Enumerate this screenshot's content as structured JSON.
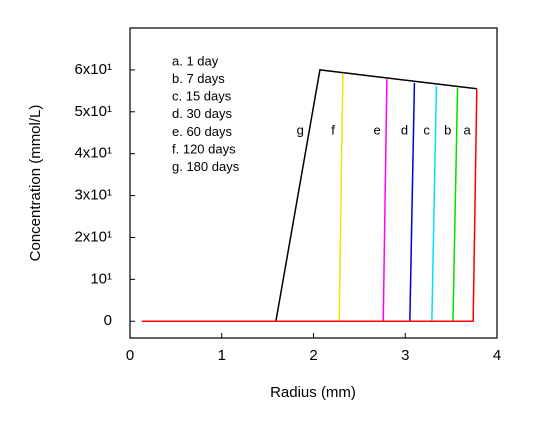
{
  "chart_data": {
    "type": "line",
    "x_label": "Radius (mm)",
    "y_label": "Concentration (mmol/L)",
    "xlim": [
      0,
      4
    ],
    "xticks": [
      0,
      1,
      2,
      3,
      4
    ],
    "ylim": [
      -4,
      70
    ],
    "yticks": [
      0,
      {
        "value": 10,
        "label": "10¹"
      },
      {
        "value": 20,
        "label": "2x10¹"
      },
      {
        "value": 30,
        "label": "3x10¹"
      },
      {
        "value": 40,
        "label": "4x10¹"
      },
      {
        "value": 50,
        "label": "5x10¹"
      },
      {
        "value": 60,
        "label": "6x10¹"
      }
    ],
    "series": [
      {
        "name": "g. 180 days",
        "curve_label": "g",
        "color": "#000000",
        "x": [
          0.13,
          1.59,
          2.07,
          3.78
        ],
        "values": [
          0,
          0,
          60,
          55.5
        ]
      },
      {
        "name": "f. 120 days",
        "curve_label": "f",
        "color": "#e8e800",
        "x": [
          0.13,
          2.28,
          2.32
        ],
        "values": [
          0,
          0,
          59.2
        ]
      },
      {
        "name": "e. 60 days",
        "curve_label": "e",
        "color": "#ff00ff",
        "x": [
          0.13,
          2.76,
          2.8
        ],
        "values": [
          0,
          0,
          57.8
        ]
      },
      {
        "name": "d. 30 days",
        "curve_label": "d",
        "color": "#0000cc",
        "x": [
          0.13,
          3.05,
          3.1
        ],
        "values": [
          0,
          0,
          56.9
        ]
      },
      {
        "name": "c. 15 days",
        "curve_label": "c",
        "color": "#00e0ff",
        "x": [
          0.13,
          3.29,
          3.34
        ],
        "values": [
          0,
          0,
          56.2
        ]
      },
      {
        "name": "b. 7 days",
        "curve_label": "b",
        "color": "#00dd00",
        "x": [
          0.13,
          3.52,
          3.57
        ],
        "values": [
          0,
          0,
          55.7
        ]
      },
      {
        "name": "a. 1 day",
        "curve_label": "a",
        "color": "#ff0000",
        "x": [
          0.13,
          3.74,
          3.78
        ],
        "values": [
          0,
          0,
          55.5
        ]
      }
    ]
  }
}
